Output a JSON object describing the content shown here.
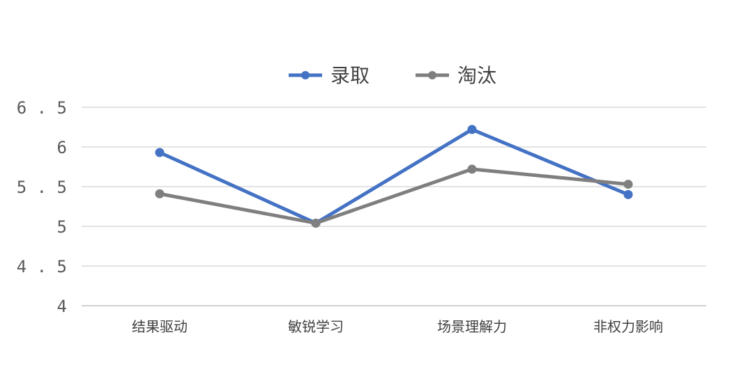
{
  "chart_data": {
    "type": "line",
    "categories": [
      "结果驱动",
      "敏锐学习",
      "场景理解力",
      "非权力影响"
    ],
    "series": [
      {
        "name": "录取",
        "values": [
          5.93,
          5.04,
          6.22,
          5.4
        ],
        "color": "#4472C4"
      },
      {
        "name": "淘汰",
        "values": [
          5.41,
          5.04,
          5.72,
          5.53
        ],
        "color": "#7F7F7F"
      }
    ],
    "yticks": [
      "4",
      "4.5",
      "5",
      "5.5",
      "6",
      "6.5"
    ],
    "ylim": [
      4,
      6.5
    ],
    "grid": true,
    "legend_position": "top-center",
    "title": "",
    "xlabel": "",
    "ylabel": ""
  }
}
